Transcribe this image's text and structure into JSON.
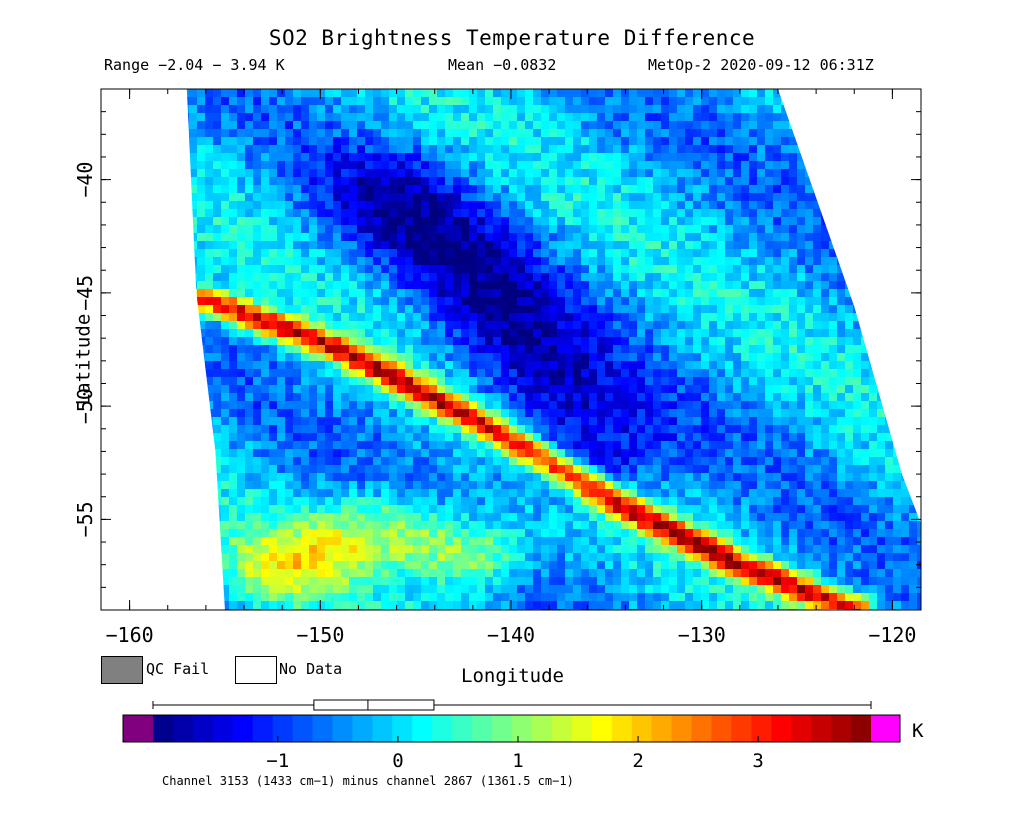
{
  "header": {
    "title": "SO2 Brightness Temperature Difference",
    "range": "Range −2.04 − 3.94 K",
    "mean": "Mean −0.0832",
    "satellite_time": "MetOp-2 2020-09-12 06:31Z"
  },
  "legend": {
    "qc_fail": "QC Fail",
    "no_data": "No Data",
    "qc_fail_color": "#808080",
    "no_data_color": "#ffffff"
  },
  "colorbar": {
    "unit": "K",
    "under_color": "#800080",
    "over_color": "#ff00ff",
    "range": [
      -2.04,
      3.94
    ],
    "tick_labels": [
      "−1",
      "0",
      "1",
      "2",
      "3"
    ],
    "tick_values": [
      -1,
      0,
      1,
      2,
      3
    ],
    "box_stats": {
      "whisker_min": -2.04,
      "q1": -0.7,
      "median": -0.25,
      "q3": 0.3,
      "whisker_max": 3.94
    }
  },
  "footnote": "Channel 3153 (1433 cm−1) minus channel 2867 (1361.5 cm−1)",
  "chart_data": {
    "type": "heatmap",
    "title": "SO2 Brightness Temperature Difference",
    "xlabel": "Longitude",
    "ylabel": "Latitude",
    "xlim": [
      -161.5,
      -118.5
    ],
    "ylim": [
      -59,
      -36
    ],
    "x_ticks": [
      -160,
      -150,
      -140,
      -130,
      -120
    ],
    "x_tick_labels": [
      "−160",
      "−150",
      "−140",
      "−130",
      "−120"
    ],
    "y_ticks": [
      -40,
      -45,
      -50,
      -55
    ],
    "y_tick_labels": [
      "−40",
      "−45",
      "−50",
      "−55"
    ],
    "colormap": "jet",
    "value_range": [
      -2.04,
      3.94
    ],
    "swath_left_edge": [
      [
        -157,
        -36
      ],
      [
        -156.5,
        -45
      ],
      [
        -155.5,
        -52
      ],
      [
        -155,
        -59
      ]
    ],
    "swath_right_edge": [
      [
        -126,
        -36
      ],
      [
        -122,
        -45.6
      ],
      [
        -119.5,
        -53
      ],
      [
        -118.5,
        -55.2
      ]
    ],
    "features": [
      {
        "name": "SO2 band (high)",
        "path": [
          [
            -156,
            -45.3
          ],
          [
            -149,
            -47.5
          ],
          [
            -141,
            -51
          ],
          [
            -134,
            -54.5
          ],
          [
            -128,
            -57
          ],
          [
            -122,
            -59
          ]
        ],
        "value": 3.0
      },
      {
        "name": "low region",
        "path": [
          [
            -146,
            -41
          ],
          [
            -142,
            -44
          ],
          [
            -139,
            -48
          ],
          [
            -136,
            -52
          ]
        ],
        "value": -1.6
      },
      {
        "name": "elevated region",
        "path": [
          [
            -152,
            -57
          ],
          [
            -147,
            -55.5
          ],
          [
            -142,
            -56.5
          ]
        ],
        "value": 1.6
      }
    ]
  }
}
